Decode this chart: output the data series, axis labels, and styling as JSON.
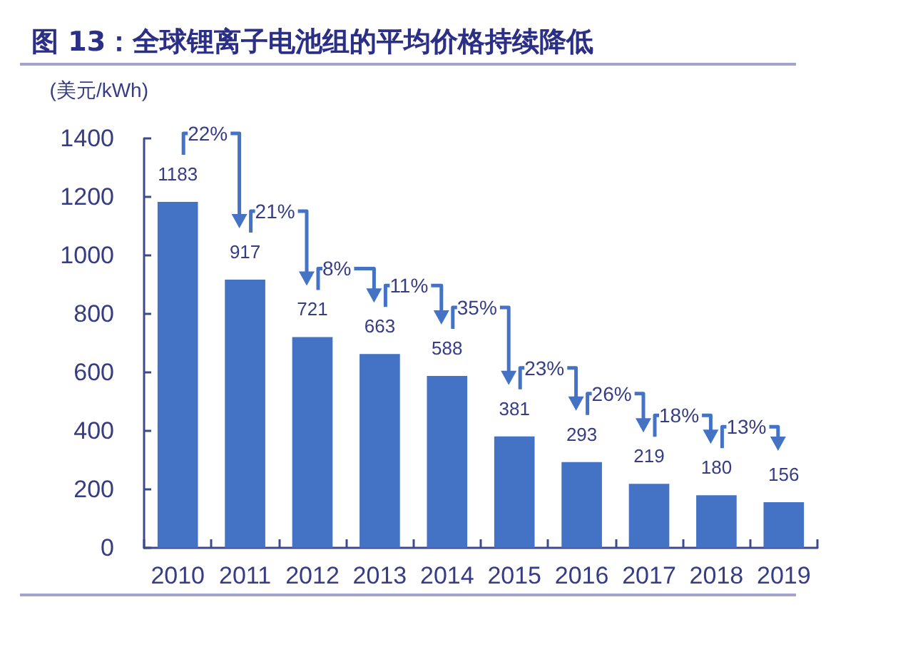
{
  "chart_data": {
    "type": "bar",
    "title": "图 13：全球锂离子电池组的平均价格持续降低",
    "ylabel": "(美元/kWh)",
    "categories": [
      "2010",
      "2011",
      "2012",
      "2013",
      "2014",
      "2015",
      "2016",
      "2017",
      "2018",
      "2019"
    ],
    "values": [
      1183,
      917,
      721,
      663,
      588,
      381,
      293,
      219,
      180,
      156
    ],
    "color": "#4472c4",
    "ylim": [
      0,
      1400
    ],
    "yticks": [
      0,
      200,
      400,
      600,
      800,
      1000,
      1200,
      1400
    ],
    "grid": false,
    "data_labels": true,
    "annotations": [
      "22%",
      "21%",
      "8%",
      "11%",
      "35%",
      "23%",
      "26%",
      "18%",
      "13%"
    ]
  }
}
